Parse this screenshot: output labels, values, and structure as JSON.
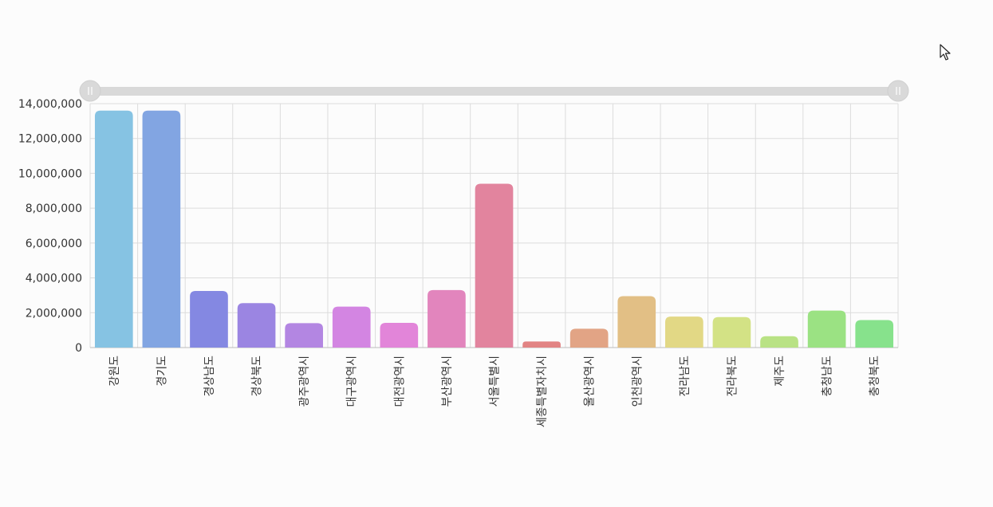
{
  "chart_data": {
    "type": "bar",
    "categories": [
      "강원도",
      "경기도",
      "경상남도",
      "경상북도",
      "광주광역시",
      "대구광역시",
      "대전광역시",
      "부산광역시",
      "서울특별시",
      "세종특별자치시",
      "울산광역시",
      "인천광역시",
      "전라남도",
      "전라북도",
      "제주도",
      "충청남도",
      "충청북도"
    ],
    "values": [
      13600000,
      13600000,
      3250000,
      2550000,
      1400000,
      2350000,
      1420000,
      3300000,
      9400000,
      350000,
      1080000,
      2950000,
      1780000,
      1750000,
      650000,
      2120000,
      1580000
    ],
    "colors": [
      "#86c3e3",
      "#82a5e2",
      "#8488e2",
      "#9b85e2",
      "#b386e2",
      "#d385e2",
      "#e285d9",
      "#e285bd",
      "#e2849e",
      "#e28484",
      "#e2a485",
      "#e2bf85",
      "#e2d885",
      "#d3e285",
      "#b9e285",
      "#9be283",
      "#87e28c"
    ],
    "yticks": [
      "0",
      "2,000,000",
      "4,000,000",
      "6,000,000",
      "8,000,000",
      "10,000,000",
      "12,000,000",
      "14,000,000"
    ],
    "ylim": [
      0,
      14000000
    ],
    "grid": true,
    "zoom_slider": true
  },
  "icons": {
    "cursor": "mouse-pointer-icon"
  }
}
